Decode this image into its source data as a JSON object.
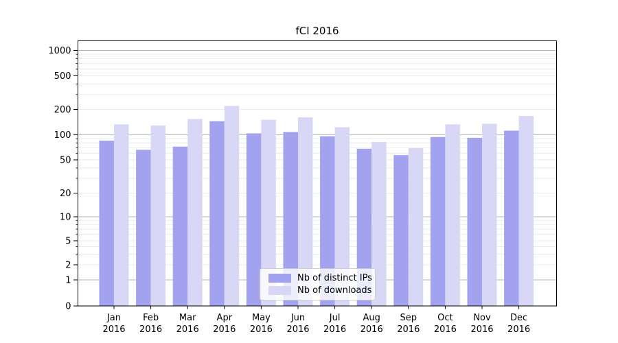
{
  "title": "fCI 2016",
  "chart_data": {
    "type": "bar",
    "title": "fCI 2016",
    "categories": [
      "Jan",
      "Feb",
      "Mar",
      "Apr",
      "May",
      "Jun",
      "Jul",
      "Aug",
      "Sep",
      "Oct",
      "Nov",
      "Dec"
    ],
    "year_label": "2016",
    "series": [
      {
        "name": "Nb of distinct IPs",
        "color": "#a2a2ee",
        "values": [
          85,
          66,
          72,
          145,
          104,
          108,
          96,
          68,
          57,
          94,
          92,
          112
        ]
      },
      {
        "name": "Nb of downloads",
        "color": "#d8d8f6",
        "values": [
          133,
          129,
          154,
          220,
          151,
          161,
          123,
          82,
          69,
          133,
          135,
          167
        ]
      }
    ],
    "yscale": "symlog",
    "yticks": [
      0,
      1,
      2,
      5,
      10,
      20,
      50,
      100,
      200,
      500,
      1000
    ],
    "ylim": [
      0,
      1300
    ],
    "xlabel": "",
    "ylabel": "",
    "grid": true,
    "legend_position": "lower center"
  },
  "colors": {
    "grid_major": "#b3b3b3",
    "grid_minor": "#ebebeb",
    "axis": "#000000",
    "legend_border": "#cccccc"
  }
}
